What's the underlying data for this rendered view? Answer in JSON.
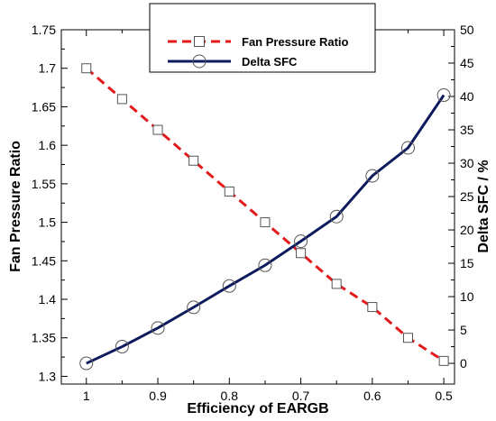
{
  "chart_data": {
    "type": "line",
    "xlabel": "Efficiency of EARGB",
    "ylabel_left": "Fan Pressure Ratio",
    "ylabel_right": "Delta SFC / %",
    "x": [
      1.0,
      0.95,
      0.9,
      0.85,
      0.8,
      0.75,
      0.7,
      0.65,
      0.6,
      0.55,
      0.5
    ],
    "xlim": [
      1.035,
      0.485
    ],
    "x_reversed": true,
    "xticks": [
      1,
      0.9,
      0.8,
      0.7,
      0.6,
      0.5
    ],
    "xtick_labels": [
      "1",
      "0.9",
      "0.8",
      "0.7",
      "0.6",
      "0.5"
    ],
    "ylim_left": [
      1.29,
      1.75
    ],
    "yticks_left": [
      1.3,
      1.35,
      1.4,
      1.45,
      1.5,
      1.55,
      1.6,
      1.65,
      1.7,
      1.75
    ],
    "ytick_labels_left": [
      "1.3",
      "1.35",
      "1.4",
      "1.45",
      "1.5",
      "1.55",
      "1.6",
      "1.65",
      "1.7",
      "1.75"
    ],
    "ylim_right": [
      -3.1,
      50
    ],
    "yticks_right": [
      0,
      5,
      10,
      15,
      20,
      25,
      30,
      35,
      40,
      45,
      50
    ],
    "ytick_labels_right": [
      "0",
      "5",
      "10",
      "15",
      "20",
      "25",
      "30",
      "35",
      "40",
      "45",
      "50"
    ],
    "grid": false,
    "legend_position": "top-center",
    "series": [
      {
        "name": "Fan Pressure Ratio",
        "axis": "left",
        "color": "#e31a1c",
        "line_style": "dashed",
        "marker": "square",
        "values": [
          1.7,
          1.66,
          1.62,
          1.58,
          1.54,
          1.5,
          1.46,
          1.42,
          1.39,
          1.35,
          1.32
        ]
      },
      {
        "name": "Delta SFC",
        "axis": "right",
        "color": "#0d1b5e",
        "line_style": "solid",
        "marker": "circle",
        "values": [
          0.0,
          2.5,
          5.3,
          8.4,
          11.6,
          14.7,
          18.3,
          22.0,
          28.1,
          32.3,
          40.2
        ]
      }
    ]
  }
}
